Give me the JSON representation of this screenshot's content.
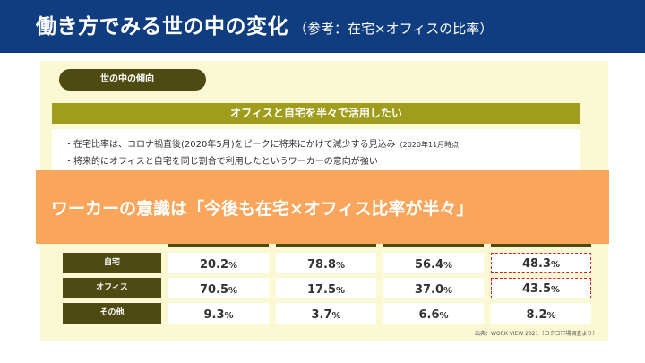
{
  "header": {
    "title": "働き方でみる世の中の変化",
    "subtitle": "（参考：在宅×オフィスの比率）",
    "background_color": "#0f3d80"
  },
  "section_pill": {
    "label": "世の中の傾向"
  },
  "heading_bar": {
    "label": "オフィスと自宅を半々で活用したい"
  },
  "bullets": {
    "item1_main": "・在宅比率は、コロナ禍直後(2020年5月)をピークに将来にかけて減少する見込み",
    "item1_note": "（2020年11月時点",
    "item2": "・将来的にオフィスと自宅を同じ割合で利用したというワーカーの意向が強い"
  },
  "banner": {
    "text": "ワーカーの意識は「今後も在宅×オフィス比率が半々」",
    "color": "#f9a55b"
  },
  "table": {
    "percent_sign": "%",
    "rows": [
      {
        "label": "自宅",
        "values": [
          "20.2",
          "78.8",
          "56.4",
          "48.3"
        ]
      },
      {
        "label": "オフィス",
        "values": [
          "70.5",
          "17.5",
          "37.0",
          "43.5"
        ]
      },
      {
        "label": "その他",
        "values": [
          "9.3",
          "3.7",
          "6.6",
          "8.2"
        ]
      }
    ],
    "highlight_column": 3,
    "highlight_color": "#d0201e"
  },
  "source": {
    "text": "出典：WORK VIEW 2021（コクヨ市場調査より）"
  }
}
